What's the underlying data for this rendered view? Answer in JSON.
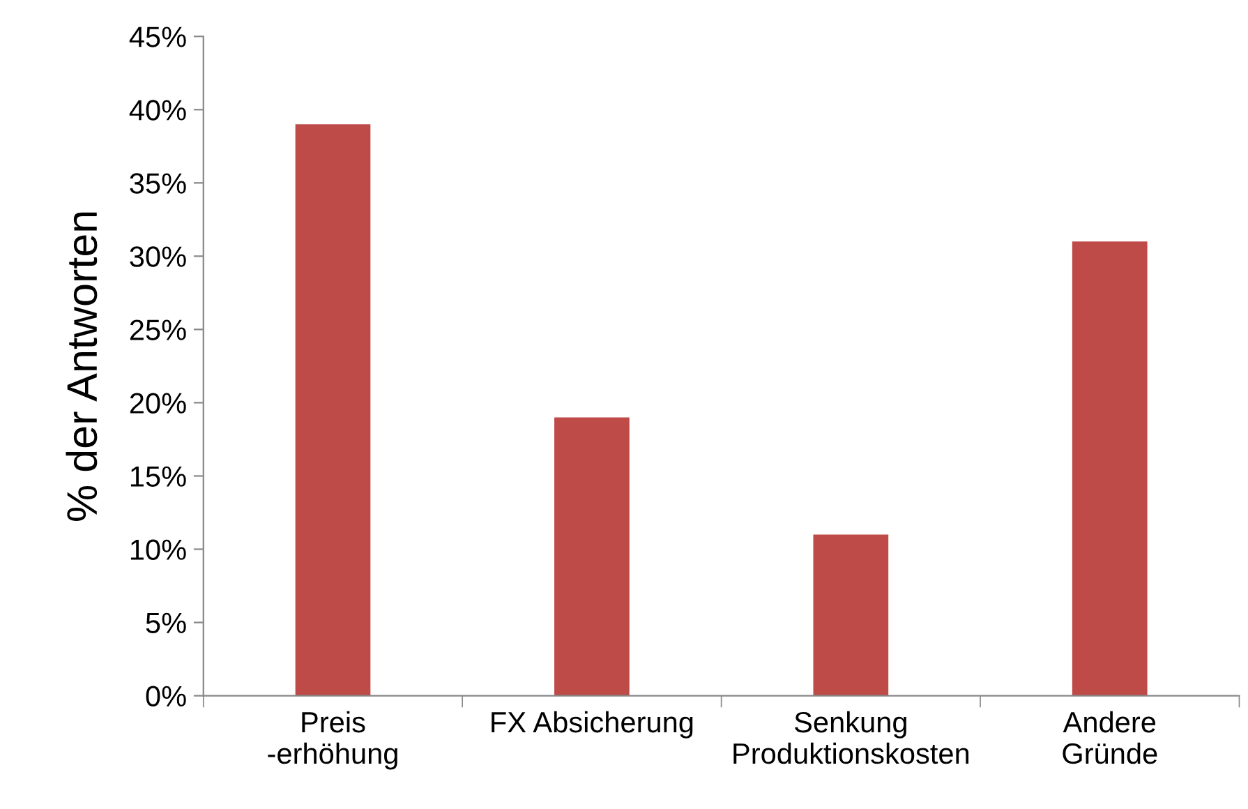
{
  "chart_data": {
    "type": "bar",
    "ylabel": "% der Antworten",
    "categories": [
      "Preis\n-erhöhung",
      "FX Absicherung",
      "Senkung\nProduktionskosten",
      "Andere\nGründe"
    ],
    "values": [
      39,
      19,
      11,
      31
    ],
    "color": "#be4b48",
    "ylim": [
      0,
      45
    ],
    "yticks": [
      {
        "value": 0,
        "label": "0%"
      },
      {
        "value": 5,
        "label": "5%"
      },
      {
        "value": 10,
        "label": "10%"
      },
      {
        "value": 15,
        "label": "15%"
      },
      {
        "value": 20,
        "label": "20%"
      },
      {
        "value": 25,
        "label": "25%"
      },
      {
        "value": 30,
        "label": "30%"
      },
      {
        "value": 35,
        "label": "35%"
      },
      {
        "value": 40,
        "label": "40%"
      },
      {
        "value": 45,
        "label": "45%"
      }
    ],
    "grid": false,
    "legend": false
  }
}
